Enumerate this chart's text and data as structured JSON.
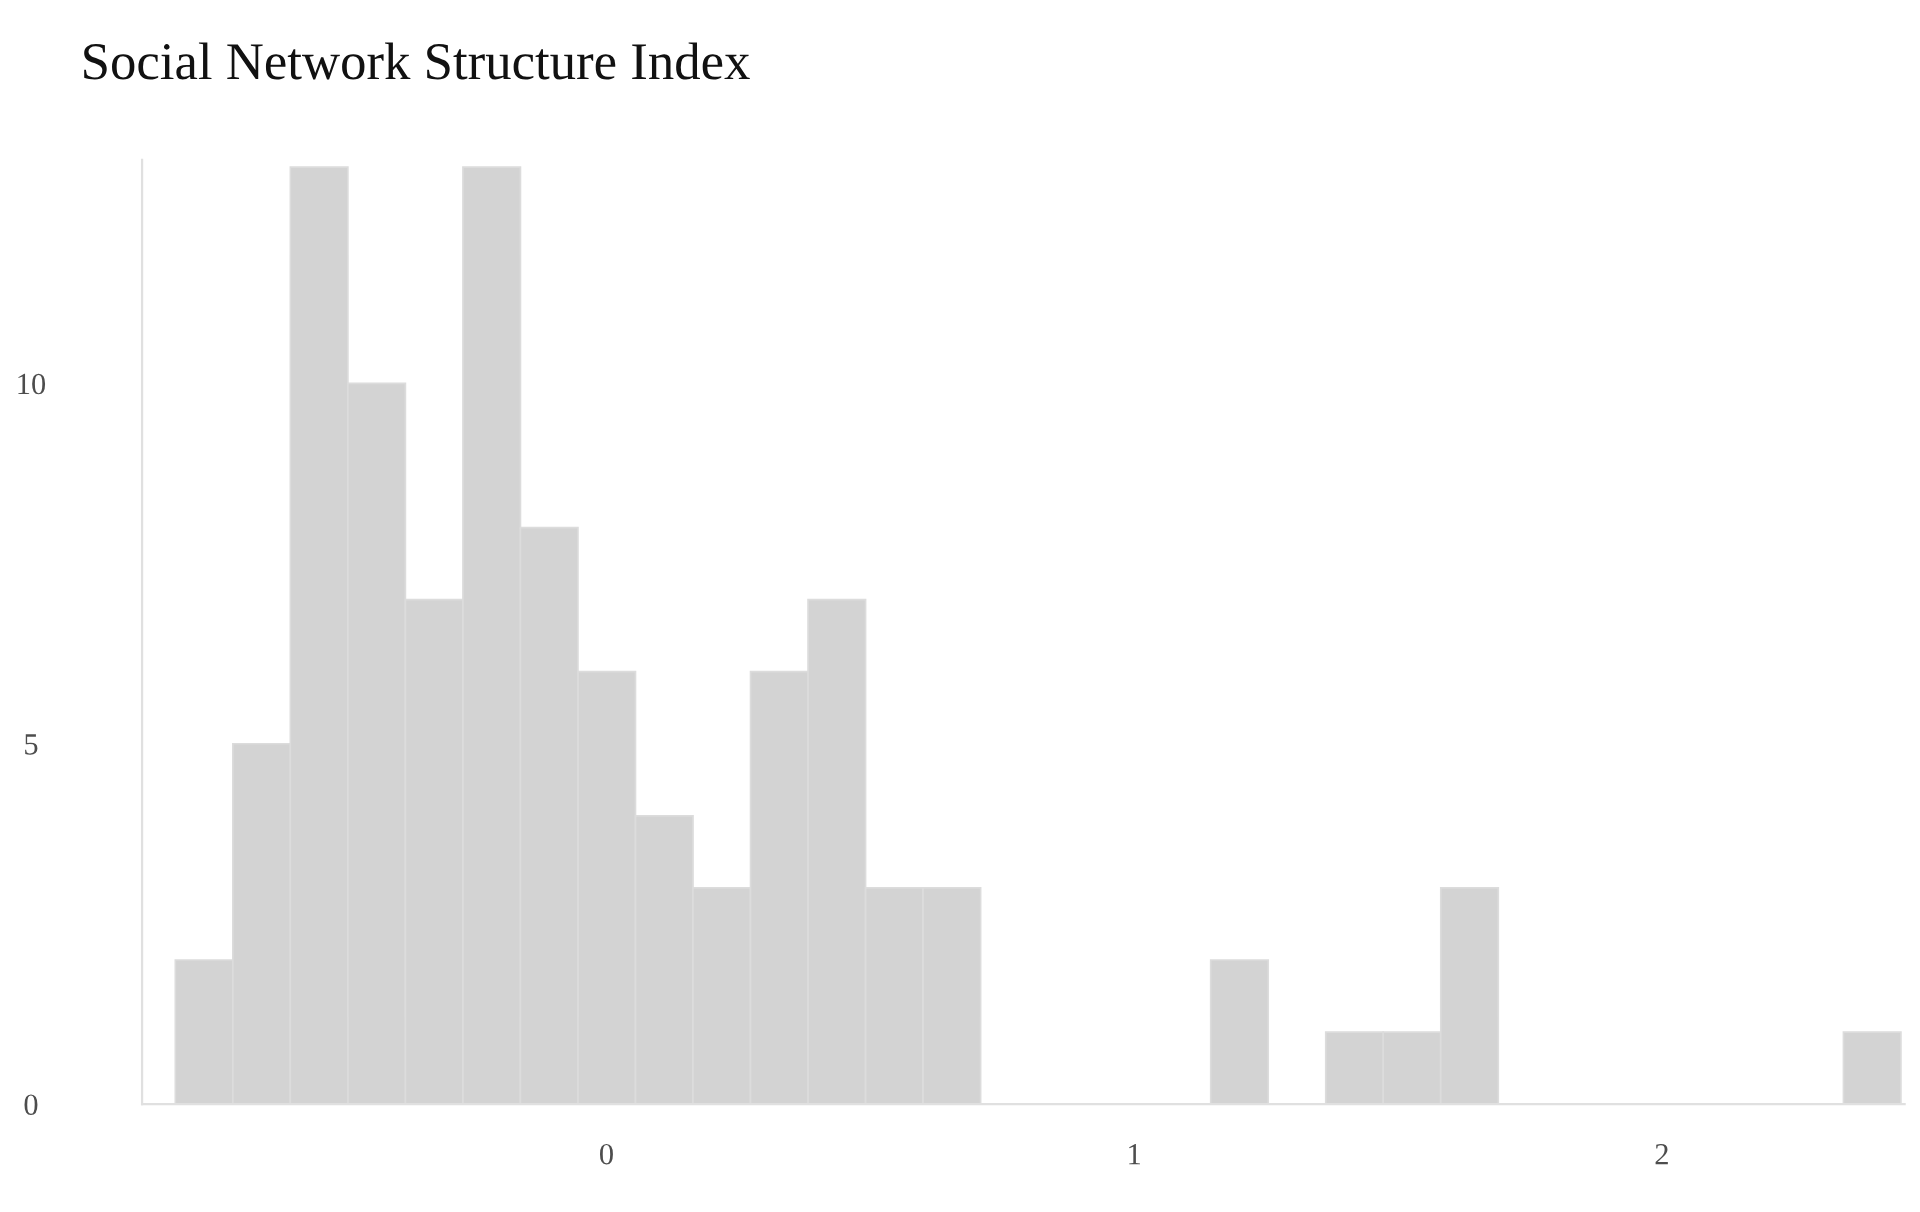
{
  "chart_data": {
    "type": "histogram",
    "title": "Social Network Structure Index",
    "bins": [
      -0.817,
      -0.708,
      -0.599,
      -0.49,
      -0.381,
      -0.272,
      -0.163,
      -0.054,
      0.055,
      0.164,
      0.273,
      0.382,
      0.491,
      0.6,
      0.709,
      0.818,
      0.927,
      1.036,
      1.145,
      1.254,
      1.363,
      1.472,
      1.581,
      1.69,
      1.799,
      1.908,
      2.017,
      2.126,
      2.235,
      2.344,
      2.453
    ],
    "values": [
      2,
      5,
      13,
      10,
      7,
      13,
      8,
      6,
      4,
      3,
      6,
      7,
      3,
      3,
      0,
      0,
      0,
      0,
      2,
      0,
      1,
      1,
      3,
      0,
      0,
      0,
      0,
      0,
      0,
      1
    ],
    "color": "#d3d3d3",
    "xlim": [
      -0.88,
      2.46
    ],
    "xticks": [
      0,
      1,
      2
    ],
    "ylim": [
      0,
      13.1
    ],
    "yticks": [
      0,
      5,
      10
    ],
    "grid": false
  }
}
